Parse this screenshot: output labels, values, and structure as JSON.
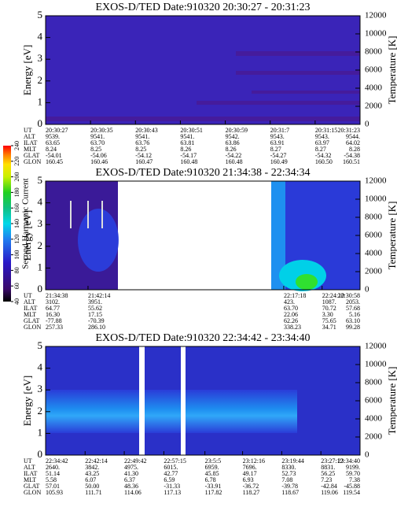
{
  "colorbar": {
    "label": "Second Harmonic Current",
    "ticks": [
      40,
      60,
      80,
      100,
      120,
      140,
      160,
      180,
      200,
      220,
      240
    ]
  },
  "panels": [
    {
      "title": "EXOS-D/TED  Date:910320  20:30:27 - 20:31:23",
      "y_label": "Energy [eV]",
      "y2_label": "Temperature [K]",
      "ylim": [
        0,
        5
      ],
      "yticks": [
        0,
        1,
        2,
        3,
        4,
        5
      ],
      "y2lim": [
        0,
        12000
      ],
      "y2ticks": [
        0,
        2000,
        4000,
        6000,
        8000,
        10000,
        12000
      ],
      "rows": [
        {
          "label": "UT",
          "values": [
            "20:30:27",
            "20:30:35",
            "20:30:43",
            "20:30:51",
            "20:30:59",
            "20:31:7",
            "20:31:15",
            "20:31:23"
          ]
        },
        {
          "label": "ALT",
          "values": [
            "9539.",
            "9541.",
            "9541.",
            "9541.",
            "9542.",
            "9543.",
            "9543.",
            "9544."
          ]
        },
        {
          "label": "ILAT",
          "values": [
            "63.65",
            "63.70",
            "63.76",
            "63.81",
            "63.86",
            "63.91",
            "63.97",
            "64.02"
          ]
        },
        {
          "label": "MLT",
          "values": [
            "8.24",
            "8.25",
            "8.25",
            "8.26",
            "8.26",
            "8.27",
            "8.27",
            "8.28"
          ]
        },
        {
          "label": "GLAT",
          "values": [
            "-54.01",
            "-54.06",
            "-54.12",
            "-54.17",
            "-54.22",
            "-54.27",
            "-54.32",
            "-54.38"
          ]
        },
        {
          "label": "GLON",
          "values": [
            "160.45",
            "160.46",
            "160.47",
            "160.48",
            "160.48",
            "160.49",
            "160.50",
            "160.51"
          ]
        }
      ]
    },
    {
      "title": "EXOS-D/TED  Date:910320  21:34:38 - 22:34:34",
      "y_label": "Energy [eV]",
      "y2_label": "Temperature [K]",
      "ylim": [
        0,
        5
      ],
      "yticks": [
        0,
        1,
        2,
        3,
        4,
        5
      ],
      "y2lim": [
        0,
        12000
      ],
      "y2ticks": [
        0,
        2000,
        4000,
        6000,
        8000,
        10000,
        12000
      ],
      "rows": [
        {
          "label": "UT",
          "values": [
            "21:34:38",
            "21:42:14",
            "22:17:18",
            "22:24:10",
            "22:30:58"
          ]
        },
        {
          "label": "ALT",
          "values": [
            "3102.",
            "3951.",
            "423.",
            "1087.",
            "2053."
          ]
        },
        {
          "label": "ILAT",
          "values": [
            "64.77",
            "55.62",
            "63.70",
            "70.72",
            "57.68"
          ]
        },
        {
          "label": "MLT",
          "values": [
            "16.30",
            "17.15",
            "22.06",
            "3.30",
            "5.16"
          ]
        },
        {
          "label": "GLAT",
          "values": [
            "-77.88",
            "-70.39",
            "62.26",
            "75.65",
            "63.10"
          ]
        },
        {
          "label": "GLON",
          "values": [
            "257.33",
            "286.10",
            "338.23",
            "34.71",
            "99.28"
          ]
        }
      ]
    },
    {
      "title": "EXOS-D/TED  Date:910320  22:34:42 - 23:34:40",
      "y_label": "Energy [eV]",
      "y2_label": "Temperature [K]",
      "ylim": [
        0,
        5
      ],
      "yticks": [
        0,
        1,
        2,
        3,
        4,
        5
      ],
      "y2lim": [
        0,
        12000
      ],
      "y2ticks": [
        0,
        2000,
        4000,
        6000,
        8000,
        10000,
        12000
      ],
      "rows": [
        {
          "label": "UT",
          "values": [
            "22:34:42",
            "22:42:14",
            "22:49:42",
            "22:57:15",
            "23:5:5",
            "23:12:16",
            "23:19:44",
            "23:27:12",
            "23:34:40"
          ]
        },
        {
          "label": "ALT",
          "values": [
            "2640.",
            "3842.",
            "4975.",
            "6015.",
            "6959.",
            "7696.",
            "8330.",
            "8831.",
            "9199."
          ]
        },
        {
          "label": "ILAT",
          "values": [
            "51.14",
            "43.25",
            "41.30",
            "42.77",
            "45.85",
            "49.17",
            "52.73",
            "56.25",
            "59.70"
          ]
        },
        {
          "label": "MLT",
          "values": [
            "5.58",
            "6.07",
            "6.37",
            "6.59",
            "6.78",
            "6.93",
            "7.08",
            "7.23",
            "7.38"
          ]
        },
        {
          "label": "GLAT",
          "values": [
            "57.01",
            "50.00",
            "48.36",
            "-31.33",
            "-33.91",
            "-36.72",
            "-39.78",
            "-42.84",
            "-45.88"
          ]
        },
        {
          "label": "GLON",
          "values": [
            "105.93",
            "111.71",
            "114.06",
            "117.13",
            "117.82",
            "118.27",
            "118.67",
            "119.06",
            "119.54"
          ]
        }
      ]
    }
  ]
}
